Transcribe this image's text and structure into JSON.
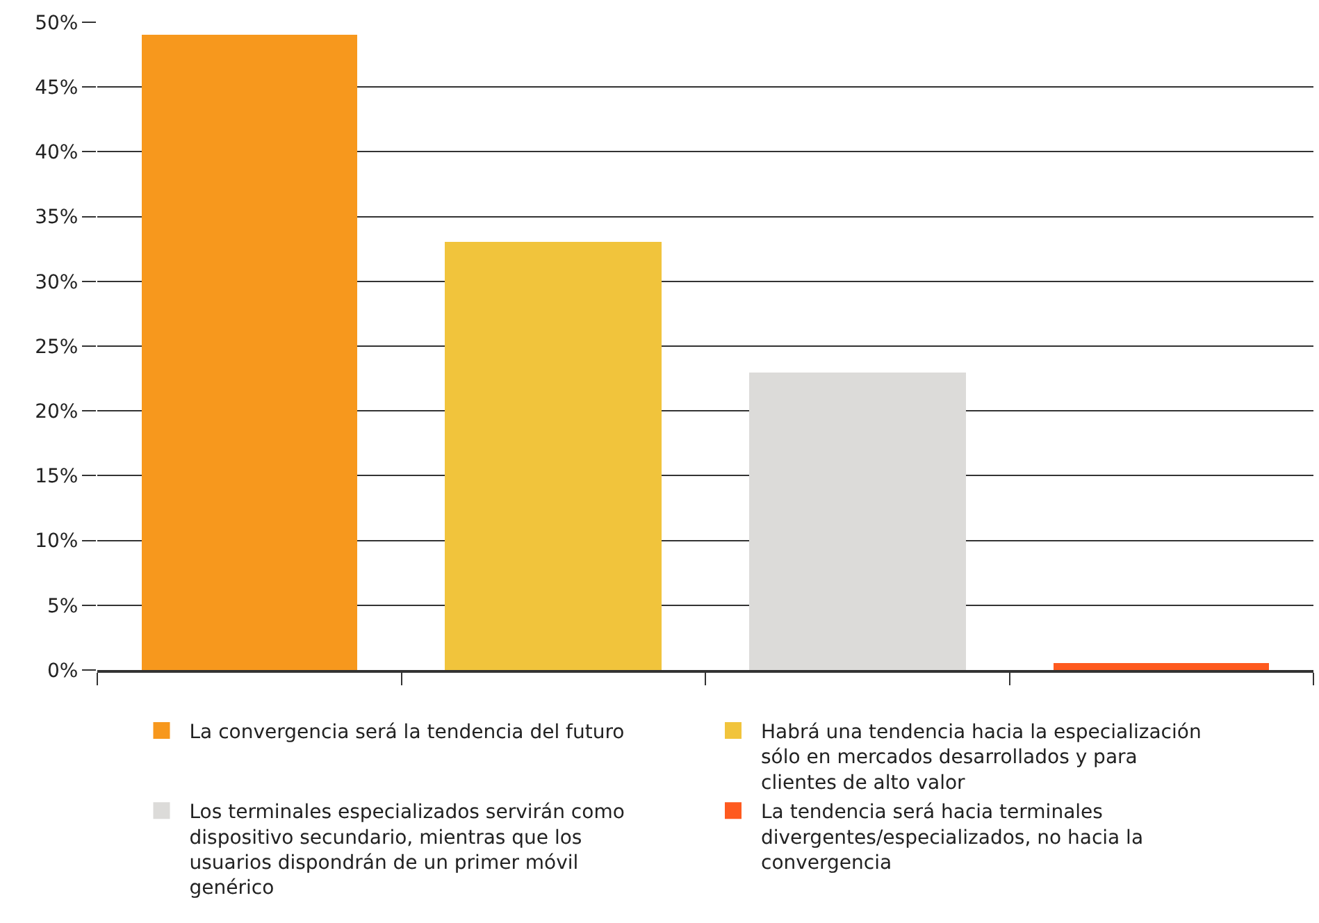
{
  "chart_data": {
    "type": "bar",
    "categories": [
      null,
      null,
      null,
      null
    ],
    "series": [
      {
        "name": "La convergencia será la tendencia del futuro",
        "color": "#f7981d",
        "values": [
          49,
          null,
          null,
          null
        ]
      },
      {
        "name": "Habrá una tendencia hacia la especialización sólo en mercados desarrollados y para clientes de alto valor",
        "color": "#f1c43c",
        "values": [
          null,
          33,
          null,
          null
        ]
      },
      {
        "name": "Los terminales especializados servirán como dispositivo secundario, mientras que los usuarios dispondrán de un primer móvil genérico",
        "color": "#dcdbd9",
        "values": [
          null,
          null,
          23,
          null
        ]
      },
      {
        "name": "La tendencia será hacia terminales divergentes/especializados, no hacia la convergencia",
        "color": "#fe5a1f",
        "values": [
          null,
          null,
          null,
          0.5
        ]
      }
    ],
    "ylim": [
      0,
      50
    ],
    "yticks": [
      {
        "value": 0,
        "label": "0%"
      },
      {
        "value": 5,
        "label": "5%"
      },
      {
        "value": 10,
        "label": "10%"
      },
      {
        "value": 15,
        "label": "15%"
      },
      {
        "value": 20,
        "label": "20%"
      },
      {
        "value": 25,
        "label": "25%"
      },
      {
        "value": 30,
        "label": "30%"
      },
      {
        "value": 35,
        "label": "35%"
      },
      {
        "value": 40,
        "label": "40%"
      },
      {
        "value": 45,
        "label": "45%"
      },
      {
        "value": 50,
        "label": "50%"
      }
    ],
    "grid": "y",
    "legend": "bottom",
    "tick_labels": "y"
  }
}
